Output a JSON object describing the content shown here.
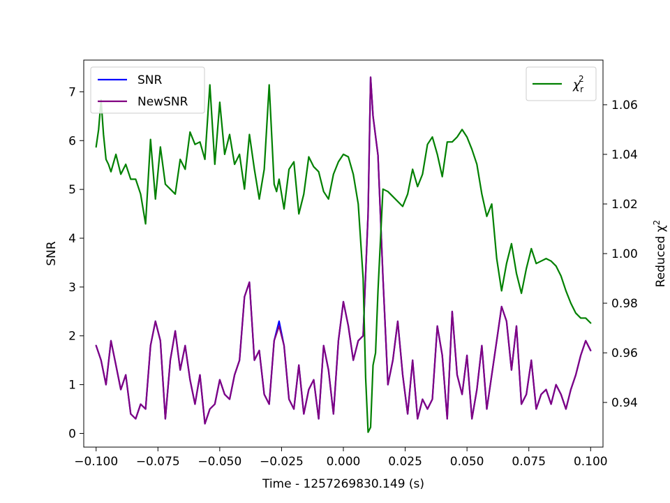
{
  "chart_data": {
    "type": "line",
    "title": "",
    "xlabel": "Time - 1257269830.149 (s)",
    "ylabel": "SNR",
    "y2label": "Reduced χ²",
    "y2label_parts": {
      "base": "Reduced χ",
      "sup": "2"
    },
    "xlim": [
      -0.105,
      0.105
    ],
    "ylim": [
      -0.28,
      7.65
    ],
    "y2lim": [
      0.922,
      1.078
    ],
    "xticks": [
      -0.1,
      -0.075,
      -0.05,
      -0.025,
      0.0,
      0.025,
      0.05,
      0.075,
      0.1
    ],
    "xtick_labels": [
      "−0.100",
      "−0.075",
      "−0.050",
      "−0.025",
      "0.000",
      "0.025",
      "0.050",
      "0.075",
      "0.100"
    ],
    "yticks": [
      0,
      1,
      2,
      3,
      4,
      5,
      6,
      7
    ],
    "ytick_labels": [
      "0",
      "1",
      "2",
      "3",
      "4",
      "5",
      "6",
      "7"
    ],
    "y2ticks": [
      0.94,
      0.96,
      0.98,
      1.0,
      1.02,
      1.04,
      1.06
    ],
    "y2tick_labels": [
      "0.94",
      "0.96",
      "0.98",
      "1.00",
      "1.02",
      "1.04",
      "1.06"
    ],
    "grid": false,
    "legend_left": {
      "placement": "upper-left",
      "entries": [
        {
          "label": "SNR",
          "color": "#0000ff"
        },
        {
          "label": "NewSNR",
          "color": "#800080"
        }
      ]
    },
    "legend_right": {
      "placement": "upper-right",
      "entries": [
        {
          "label_base": "χ",
          "label_sub": "r",
          "label_sup": "2",
          "color": "#008000"
        }
      ]
    },
    "series": [
      {
        "name": "SNR",
        "axis": "left",
        "color": "#0000ff",
        "x": [
          -0.1,
          -0.098,
          -0.096,
          -0.094,
          -0.092,
          -0.09,
          -0.088,
          -0.086,
          -0.084,
          -0.082,
          -0.08,
          -0.078,
          -0.076,
          -0.074,
          -0.072,
          -0.07,
          -0.068,
          -0.066,
          -0.064,
          -0.062,
          -0.06,
          -0.058,
          -0.056,
          -0.054,
          -0.052,
          -0.05,
          -0.048,
          -0.046,
          -0.044,
          -0.042,
          -0.04,
          -0.038,
          -0.036,
          -0.034,
          -0.032,
          -0.03,
          -0.028,
          -0.026,
          -0.024,
          -0.022,
          -0.02,
          -0.018,
          -0.016,
          -0.014,
          -0.012,
          -0.01,
          -0.008,
          -0.006,
          -0.004,
          -0.002,
          0.0,
          0.002,
          0.004,
          0.006,
          0.008,
          0.01,
          0.011,
          0.012,
          0.014,
          0.016,
          0.018,
          0.02,
          0.022,
          0.024,
          0.026,
          0.028,
          0.03,
          0.032,
          0.034,
          0.036,
          0.038,
          0.04,
          0.042,
          0.044,
          0.046,
          0.048,
          0.05,
          0.052,
          0.054,
          0.056,
          0.058,
          0.06,
          0.062,
          0.064,
          0.066,
          0.068,
          0.07,
          0.072,
          0.074,
          0.076,
          0.078,
          0.08,
          0.082,
          0.084,
          0.086,
          0.088,
          0.09,
          0.092,
          0.094,
          0.096,
          0.098,
          0.1
        ],
        "values": [
          1.8,
          1.5,
          1.0,
          1.9,
          1.4,
          0.9,
          1.2,
          0.4,
          0.3,
          0.6,
          0.5,
          1.8,
          2.3,
          1.9,
          0.3,
          1.5,
          2.1,
          1.3,
          1.8,
          1.1,
          0.6,
          1.2,
          0.2,
          0.5,
          0.6,
          1.1,
          0.8,
          0.7,
          1.2,
          1.5,
          2.8,
          3.1,
          1.5,
          1.7,
          0.8,
          0.6,
          1.9,
          2.3,
          1.8,
          0.7,
          0.5,
          1.4,
          0.4,
          0.9,
          1.1,
          0.3,
          1.8,
          1.3,
          0.4,
          1.9,
          2.7,
          2.2,
          1.5,
          1.9,
          2.0,
          4.5,
          7.3,
          6.5,
          5.7,
          3.2,
          1.0,
          1.5,
          2.3,
          1.2,
          0.4,
          1.5,
          0.3,
          0.7,
          0.5,
          0.7,
          2.2,
          1.6,
          0.3,
          2.5,
          1.2,
          0.8,
          1.6,
          0.3,
          0.9,
          1.8,
          0.5,
          1.2,
          1.9,
          2.6,
          2.3,
          1.3,
          2.2,
          0.6,
          0.8,
          1.5,
          0.5,
          0.8,
          0.9,
          0.6,
          1.0,
          0.8,
          0.5,
          0.9,
          1.2,
          1.6,
          1.9,
          1.7
        ]
      },
      {
        "name": "NewSNR",
        "axis": "left",
        "color": "#800080",
        "x": [
          -0.1,
          -0.098,
          -0.096,
          -0.094,
          -0.092,
          -0.09,
          -0.088,
          -0.086,
          -0.084,
          -0.082,
          -0.08,
          -0.078,
          -0.076,
          -0.074,
          -0.072,
          -0.07,
          -0.068,
          -0.066,
          -0.064,
          -0.062,
          -0.06,
          -0.058,
          -0.056,
          -0.054,
          -0.052,
          -0.05,
          -0.048,
          -0.046,
          -0.044,
          -0.042,
          -0.04,
          -0.038,
          -0.036,
          -0.034,
          -0.032,
          -0.03,
          -0.028,
          -0.026,
          -0.024,
          -0.022,
          -0.02,
          -0.018,
          -0.016,
          -0.014,
          -0.012,
          -0.01,
          -0.008,
          -0.006,
          -0.004,
          -0.002,
          0.0,
          0.002,
          0.004,
          0.006,
          0.008,
          0.01,
          0.011,
          0.012,
          0.014,
          0.016,
          0.018,
          0.02,
          0.022,
          0.024,
          0.026,
          0.028,
          0.03,
          0.032,
          0.034,
          0.036,
          0.038,
          0.04,
          0.042,
          0.044,
          0.046,
          0.048,
          0.05,
          0.052,
          0.054,
          0.056,
          0.058,
          0.06,
          0.062,
          0.064,
          0.066,
          0.068,
          0.07,
          0.072,
          0.074,
          0.076,
          0.078,
          0.08,
          0.082,
          0.084,
          0.086,
          0.088,
          0.09,
          0.092,
          0.094,
          0.096,
          0.098,
          0.1
        ],
        "values": [
          1.8,
          1.5,
          1.0,
          1.9,
          1.4,
          0.9,
          1.2,
          0.4,
          0.3,
          0.6,
          0.5,
          1.8,
          2.3,
          1.9,
          0.3,
          1.5,
          2.1,
          1.3,
          1.8,
          1.1,
          0.6,
          1.2,
          0.2,
          0.5,
          0.6,
          1.1,
          0.8,
          0.7,
          1.2,
          1.5,
          2.8,
          3.1,
          1.5,
          1.7,
          0.8,
          0.6,
          1.9,
          2.2,
          1.8,
          0.7,
          0.5,
          1.4,
          0.4,
          0.9,
          1.1,
          0.3,
          1.8,
          1.3,
          0.4,
          1.9,
          2.7,
          2.2,
          1.5,
          1.9,
          2.0,
          4.5,
          7.3,
          6.5,
          5.7,
          3.2,
          1.0,
          1.5,
          2.3,
          1.2,
          0.4,
          1.5,
          0.3,
          0.7,
          0.5,
          0.7,
          2.2,
          1.6,
          0.3,
          2.5,
          1.2,
          0.8,
          1.6,
          0.3,
          0.9,
          1.8,
          0.5,
          1.2,
          1.9,
          2.6,
          2.3,
          1.3,
          2.2,
          0.6,
          0.8,
          1.5,
          0.5,
          0.8,
          0.9,
          0.6,
          1.0,
          0.8,
          0.5,
          0.9,
          1.2,
          1.6,
          1.9,
          1.7
        ]
      },
      {
        "name": "χr²",
        "axis": "right",
        "color": "#008000",
        "x": [
          -0.1,
          -0.099,
          -0.098,
          -0.097,
          -0.096,
          -0.095,
          -0.094,
          -0.092,
          -0.09,
          -0.088,
          -0.086,
          -0.084,
          -0.082,
          -0.08,
          -0.078,
          -0.076,
          -0.074,
          -0.072,
          -0.07,
          -0.068,
          -0.066,
          -0.064,
          -0.062,
          -0.06,
          -0.058,
          -0.056,
          -0.054,
          -0.052,
          -0.05,
          -0.048,
          -0.046,
          -0.044,
          -0.042,
          -0.04,
          -0.038,
          -0.036,
          -0.034,
          -0.032,
          -0.03,
          -0.028,
          -0.027,
          -0.026,
          -0.024,
          -0.022,
          -0.02,
          -0.018,
          -0.016,
          -0.014,
          -0.012,
          -0.01,
          -0.008,
          -0.006,
          -0.004,
          -0.002,
          0.0,
          0.002,
          0.004,
          0.006,
          0.008,
          0.009,
          0.01,
          0.011,
          0.012,
          0.013,
          0.014,
          0.016,
          0.018,
          0.02,
          0.022,
          0.024,
          0.026,
          0.028,
          0.03,
          0.032,
          0.034,
          0.036,
          0.038,
          0.04,
          0.042,
          0.044,
          0.046,
          0.048,
          0.05,
          0.052,
          0.054,
          0.056,
          0.058,
          0.06,
          0.062,
          0.064,
          0.066,
          0.068,
          0.07,
          0.072,
          0.074,
          0.076,
          0.078,
          0.08,
          0.082,
          0.084,
          0.086,
          0.088,
          0.09,
          0.092,
          0.094,
          0.096,
          0.098,
          0.1
        ],
        "values": [
          1.043,
          1.05,
          1.062,
          1.048,
          1.038,
          1.036,
          1.033,
          1.04,
          1.032,
          1.036,
          1.03,
          1.03,
          1.024,
          1.012,
          1.046,
          1.022,
          1.043,
          1.028,
          1.026,
          1.024,
          1.038,
          1.034,
          1.049,
          1.044,
          1.045,
          1.038,
          1.068,
          1.036,
          1.061,
          1.04,
          1.048,
          1.036,
          1.04,
          1.026,
          1.048,
          1.034,
          1.022,
          1.034,
          1.068,
          1.028,
          1.025,
          1.03,
          1.018,
          1.034,
          1.037,
          1.016,
          1.024,
          1.039,
          1.035,
          1.033,
          1.025,
          1.022,
          1.032,
          1.037,
          1.04,
          1.039,
          1.032,
          1.02,
          0.99,
          0.95,
          0.928,
          0.93,
          0.955,
          0.96,
          0.985,
          1.026,
          1.025,
          1.023,
          1.021,
          1.019,
          1.024,
          1.034,
          1.027,
          1.032,
          1.044,
          1.047,
          1.04,
          1.031,
          1.045,
          1.045,
          1.047,
          1.05,
          1.047,
          1.042,
          1.036,
          1.024,
          1.015,
          1.02,
          0.998,
          0.985,
          0.996,
          1.004,
          0.992,
          0.984,
          0.994,
          1.002,
          0.996,
          0.997,
          0.998,
          0.997,
          0.995,
          0.991,
          0.985,
          0.98,
          0.976,
          0.974,
          0.974,
          0.972
        ]
      }
    ]
  }
}
